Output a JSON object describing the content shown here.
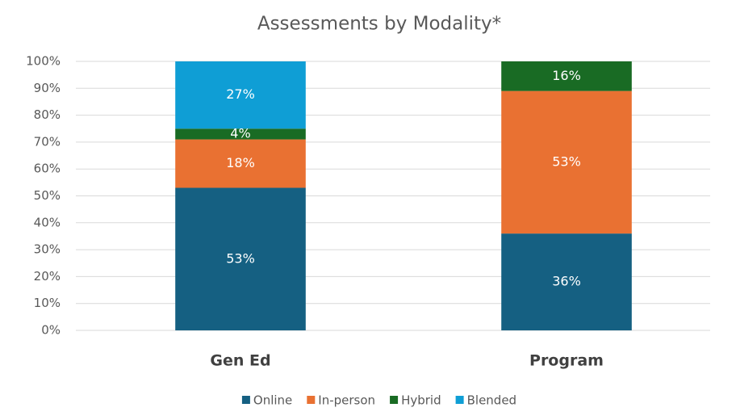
{
  "chart_data": {
    "type": "stacked_bar",
    "title": "Assessments by Modality*",
    "categories": [
      "Gen Ed",
      "Program"
    ],
    "series": [
      {
        "name": "Online",
        "color": "#156082",
        "values": [
          53,
          36
        ],
        "value_labels": [
          "53%",
          "36%"
        ]
      },
      {
        "name": "In-person",
        "color": "#e97132",
        "values": [
          18,
          53
        ],
        "value_labels": [
          "18%",
          "53%"
        ]
      },
      {
        "name": "Hybrid",
        "color": "#196b24",
        "values": [
          4,
          16
        ],
        "value_labels": [
          "4%",
          "16%"
        ]
      },
      {
        "name": "Blended",
        "color": "#0f9ed5",
        "values": [
          27,
          null
        ],
        "value_labels": [
          "27%",
          null
        ]
      }
    ],
    "ylim": [
      0,
      100
    ],
    "yticks": [
      {
        "value": 0,
        "label": "0%"
      },
      {
        "value": 10,
        "label": "10%"
      },
      {
        "value": 20,
        "label": "20%"
      },
      {
        "value": 30,
        "label": "30%"
      },
      {
        "value": 40,
        "label": "40%"
      },
      {
        "value": 50,
        "label": "50%"
      },
      {
        "value": 60,
        "label": "60%"
      },
      {
        "value": 70,
        "label": "70%"
      },
      {
        "value": 80,
        "label": "80%"
      },
      {
        "value": 90,
        "label": "90%"
      },
      {
        "value": 100,
        "label": "100%"
      }
    ],
    "grid": true,
    "legend": "bottom"
  }
}
